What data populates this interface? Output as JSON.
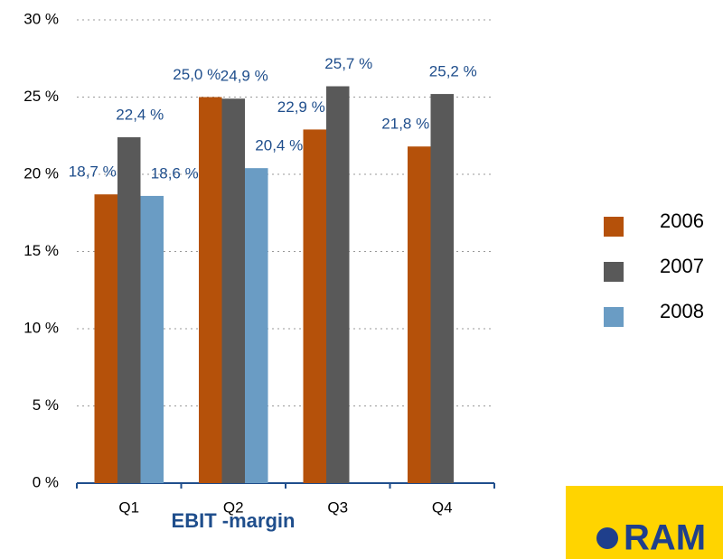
{
  "chart_data": {
    "type": "bar",
    "title": "EBIT -margin",
    "categories": [
      "Q1",
      "Q2",
      "Q3",
      "Q4"
    ],
    "series": [
      {
        "name": "2006",
        "color": "#b5510a",
        "values": [
          18.7,
          25.0,
          22.9,
          21.8
        ],
        "value_labels": [
          "18,7 %",
          "25,0 %",
          "22,9 %",
          "21,8 %"
        ]
      },
      {
        "name": "2007",
        "color": "#595959",
        "values": [
          22.4,
          24.9,
          25.7,
          25.2
        ],
        "value_labels": [
          "22,4 %",
          "24,9 %",
          "25,7 %",
          "25,2 %"
        ]
      },
      {
        "name": "2008",
        "color": "#6a9cc4",
        "values": [
          18.6,
          20.4,
          null,
          null
        ],
        "value_labels": [
          "18,6 %",
          "20,4 %",
          null,
          null
        ]
      }
    ],
    "ylim": [
      0,
      30
    ],
    "yticks": [
      {
        "value": 0,
        "label": "0 %"
      },
      {
        "value": 5,
        "label": "5 %"
      },
      {
        "value": 10,
        "label": "10 %"
      },
      {
        "value": 15,
        "label": "15 %"
      },
      {
        "value": 20,
        "label": "20 %"
      },
      {
        "value": 25,
        "label": "25 %"
      },
      {
        "value": 30,
        "label": "30 %"
      }
    ],
    "grid": true,
    "legend": "right"
  },
  "logo": {
    "text": "RAM"
  }
}
